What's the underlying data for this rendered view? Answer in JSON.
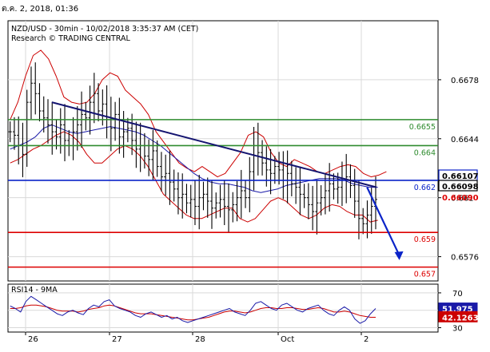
{
  "window": {
    "date_text": "ต.ค. 2, 2018, 01:36"
  },
  "header": {
    "line1": "NZD/USD - 30min - 10/02/2018 3:35:37 AM (CET)",
    "line2": "Research © TRADING CENTRAL"
  },
  "colors": {
    "price": "#000000",
    "bollinger": "#cc0000",
    "ma": "#1a1aa8",
    "trendline": "#141470",
    "resistance": "#2e8b2e",
    "pivot": "#0a23c8",
    "support": "#dd0000",
    "rsi_line": "#1a1aa8",
    "rsi_signal": "#cc0000",
    "grid": "#d9d9d9",
    "price_badge": "#000000"
  },
  "chart_data": [
    {
      "type": "line",
      "name": "price-panel",
      "ylim": [
        0.6562,
        0.6712
      ],
      "y_ticks": [
        0.6576,
        0.661,
        0.6644,
        0.6678
      ],
      "y_tick_labels": [
        "0.6576",
        "0.661",
        "0.6644",
        "0.6678"
      ],
      "x_tick_labels": [
        "26",
        "27",
        "28",
        "Oct",
        "2"
      ],
      "levels": [
        {
          "value": 0.6655,
          "label": "0.6655",
          "kind": "resistance"
        },
        {
          "value": 0.664,
          "label": "0.664",
          "kind": "resistance"
        },
        {
          "value": 0.662,
          "label": "0.662",
          "kind": "pivot"
        },
        {
          "value": 0.659,
          "label": "0.659",
          "kind": "support"
        },
        {
          "value": 0.657,
          "label": "0.657",
          "kind": "support"
        }
      ],
      "price_badges": [
        {
          "value": 0.66107,
          "label": "0.66107",
          "style": "blue-box"
        },
        {
          "value": 0.66098,
          "label": "0.66098",
          "style": "black-box"
        },
        {
          "value": 0.6609,
          "label": "0.66090",
          "style": "red-text"
        }
      ],
      "close_series": [
        0.6648,
        0.6646,
        0.664,
        0.6635,
        0.6665,
        0.6676,
        0.667,
        0.666,
        0.6656,
        0.6652,
        0.6648,
        0.6645,
        0.6652,
        0.6643,
        0.664,
        0.6648,
        0.6652,
        0.6658,
        0.6656,
        0.6665,
        0.667,
        0.666,
        0.6664,
        0.6655,
        0.665,
        0.6658,
        0.6645,
        0.6648,
        0.665,
        0.6643,
        0.6638,
        0.664,
        0.6634,
        0.6632,
        0.6637,
        0.6628,
        0.6622,
        0.6624,
        0.6619,
        0.6615,
        0.661,
        0.6612,
        0.6607,
        0.6609,
        0.6605,
        0.661,
        0.6612,
        0.6608,
        0.6604,
        0.6607,
        0.6609,
        0.6605,
        0.6603,
        0.6606,
        0.661,
        0.6614,
        0.661,
        0.6625,
        0.664,
        0.6636,
        0.663,
        0.6626,
        0.6624,
        0.6628,
        0.6626,
        0.662,
        0.6624,
        0.6618,
        0.6616,
        0.6612,
        0.661,
        0.6606,
        0.6602,
        0.6607,
        0.661,
        0.6614,
        0.6618,
        0.6615,
        0.6616,
        0.662,
        0.6622,
        0.6617,
        0.6608,
        0.6598,
        0.6595,
        0.66,
        0.6605,
        0.6609
      ],
      "ma_series": [
        0.6638,
        0.664,
        0.6642,
        0.6645,
        0.665,
        0.6652,
        0.665,
        0.6648,
        0.6647,
        0.6648,
        0.6649,
        0.665,
        0.6651,
        0.665,
        0.6649,
        0.6648,
        0.6646,
        0.6643,
        0.664,
        0.6636,
        0.6632,
        0.6628,
        0.6624,
        0.6621,
        0.6619,
        0.6618,
        0.6618,
        0.6617,
        0.6616,
        0.6614,
        0.6613,
        0.6614,
        0.6615,
        0.6617,
        0.6618,
        0.6619,
        0.662,
        0.6621,
        0.6621,
        0.6621,
        0.662,
        0.6618,
        0.6617,
        0.6616,
        0.6616
      ],
      "upper_band": [
        0.6655,
        0.6665,
        0.668,
        0.6692,
        0.6695,
        0.669,
        0.668,
        0.6668,
        0.6665,
        0.6664,
        0.6665,
        0.667,
        0.6678,
        0.6682,
        0.668,
        0.6672,
        0.6668,
        0.6664,
        0.6658,
        0.6648,
        0.6642,
        0.6636,
        0.663,
        0.6627,
        0.6625,
        0.6628,
        0.6625,
        0.6622,
        0.6624,
        0.663,
        0.6636,
        0.6646,
        0.6648,
        0.6645,
        0.6636,
        0.663,
        0.6628,
        0.6632,
        0.663,
        0.6628,
        0.6625,
        0.6624,
        0.6626,
        0.6628,
        0.6629,
        0.6628,
        0.6624,
        0.6622,
        0.6623,
        0.6625
      ],
      "lower_band": [
        0.663,
        0.6632,
        0.6635,
        0.6638,
        0.664,
        0.6643,
        0.6646,
        0.6648,
        0.6646,
        0.6642,
        0.6635,
        0.663,
        0.663,
        0.6634,
        0.6638,
        0.664,
        0.6638,
        0.6634,
        0.6628,
        0.662,
        0.6612,
        0.6608,
        0.6604,
        0.66,
        0.6598,
        0.6598,
        0.66,
        0.6602,
        0.6604,
        0.6604,
        0.6598,
        0.6596,
        0.6598,
        0.6603,
        0.6608,
        0.661,
        0.6608,
        0.6604,
        0.66,
        0.6598,
        0.66,
        0.6604,
        0.6606,
        0.6605,
        0.6602,
        0.66,
        0.66,
        0.6596,
        0.6597
      ],
      "trendlines": [
        {
          "from": [
            0.102,
            0.6665
          ],
          "to": [
            0.857,
            0.6616
          ]
        }
      ],
      "projection": {
        "from": [
          0.835,
          0.6616
        ],
        "to": [
          0.91,
          0.6574
        ]
      }
    },
    {
      "type": "line",
      "name": "rsi-panel",
      "title": "RSI14 - 9MA",
      "ylim": [
        25,
        80
      ],
      "y_ticks": [
        70,
        50,
        30
      ],
      "y_tick_labels": [
        "70",
        "50",
        "30"
      ],
      "value_badges": [
        {
          "value": 51.975,
          "label": "51.975",
          "style": "blue-box"
        },
        {
          "value": 42.1263,
          "label": "42.1263",
          "style": "red-box"
        }
      ],
      "rsi_series": [
        55,
        52,
        48,
        60,
        66,
        62,
        58,
        54,
        50,
        46,
        44,
        48,
        50,
        47,
        45,
        52,
        56,
        54,
        60,
        62,
        55,
        52,
        50,
        48,
        44,
        42,
        46,
        48,
        45,
        42,
        44,
        40,
        42,
        38,
        36,
        38,
        40,
        42,
        44,
        46,
        48,
        50,
        52,
        48,
        46,
        44,
        50,
        58,
        60,
        56,
        52,
        50,
        56,
        58,
        54,
        50,
        48,
        52,
        54,
        56,
        50,
        46,
        44,
        50,
        54,
        50,
        40,
        35,
        38,
        46,
        52
      ],
      "signal_series": [
        52,
        52,
        53,
        55,
        56,
        56,
        55,
        54,
        52,
        50,
        49,
        49,
        49,
        48,
        49,
        51,
        52,
        53,
        55,
        56,
        55,
        53,
        51,
        49,
        47,
        46,
        46,
        46,
        45,
        44,
        43,
        42,
        41,
        40,
        39,
        39,
        40,
        41,
        42,
        44,
        46,
        48,
        49,
        49,
        48,
        47,
        48,
        50,
        52,
        53,
        53,
        52,
        52,
        53,
        53,
        52,
        51,
        51,
        52,
        53,
        52,
        50,
        48,
        48,
        49,
        48,
        46,
        44,
        43,
        42,
        42
      ]
    }
  ]
}
